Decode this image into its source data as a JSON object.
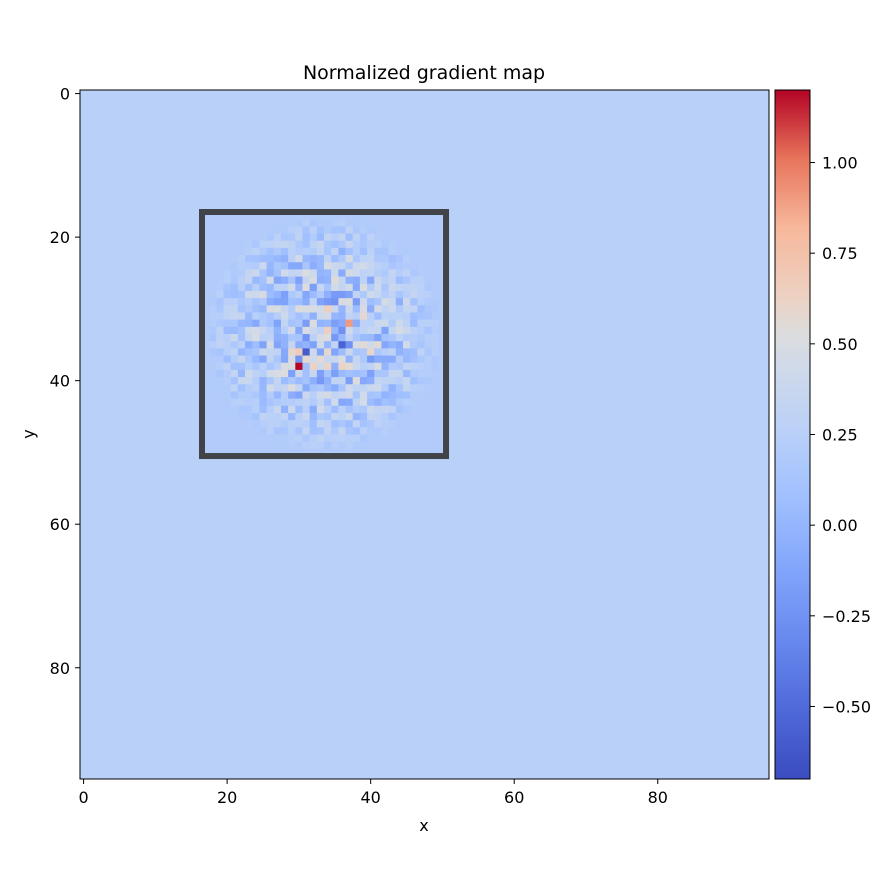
{
  "chart_data": {
    "type": "heatmap",
    "title": "Normalized gradient map",
    "xlabel": "x",
    "ylabel": "y",
    "image_shape": [
      96,
      96
    ],
    "xlim": [
      -0.5,
      95.5
    ],
    "ylim": [
      95.5,
      -0.5
    ],
    "x_ticks": [
      0,
      20,
      40,
      60,
      80
    ],
    "x_tick_labels": [
      "0",
      "20",
      "40",
      "60",
      "80"
    ],
    "y_ticks": [
      0,
      20,
      40,
      60,
      80
    ],
    "y_tick_labels": [
      "0",
      "20",
      "40",
      "60",
      "80"
    ],
    "colormap": "coolwarm",
    "color_range": [
      -0.7,
      1.2
    ],
    "background_value": -0.1,
    "region": {
      "x_range": [
        16.5,
        50.5
      ],
      "y_range": [
        16.5,
        50.5
      ],
      "inner_base_value": 0.2,
      "border_color": "#404347"
    },
    "notable_values": [
      {
        "x": 30,
        "y": 38,
        "value": 1.2
      },
      {
        "x": 37,
        "y": 32,
        "value": 0.9
      },
      {
        "x": 31,
        "y": 36,
        "value": -0.6
      },
      {
        "x": 36,
        "y": 35,
        "value": -0.55
      }
    ],
    "colorbar": {
      "ticks": [
        -0.5,
        -0.25,
        0.0,
        0.25,
        0.5,
        0.75,
        1.0
      ],
      "tick_labels": [
        "−0.50",
        "−0.25",
        "0.00",
        "0.25",
        "0.50",
        "0.75",
        "1.00"
      ]
    }
  }
}
